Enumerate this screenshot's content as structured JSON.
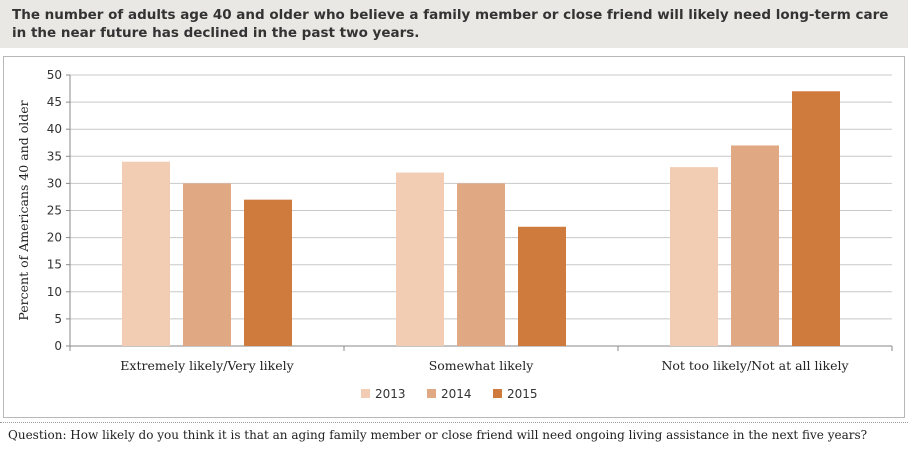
{
  "header": {
    "text": "The number of adults age 40 and older who believe a family member or close friend will likely need long-term care in the near future has declined in the past two years."
  },
  "footer": {
    "text": "Question: How likely do you think it is that an aging family member or close friend will need ongoing living assistance in the next five years?"
  },
  "chart_data": {
    "type": "bar",
    "categories": [
      "Extremely likely/Very likely",
      "Somewhat likely",
      "Not too likely/Not at all likely"
    ],
    "series": [
      {
        "name": "2013",
        "color": "#f2cdb3",
        "values": [
          34,
          32,
          33
        ]
      },
      {
        "name": "2014",
        "color": "#e0a983",
        "values": [
          30,
          30,
          37
        ]
      },
      {
        "name": "2015",
        "color": "#d07b3e",
        "values": [
          27,
          22,
          47
        ]
      }
    ],
    "ylabel": "Percent of Americans 40 and older",
    "ylim": [
      0,
      50
    ],
    "yticks": [
      0,
      5,
      10,
      15,
      20,
      25,
      30,
      35,
      40,
      45,
      50
    ],
    "grid": true,
    "legend": "bottom"
  }
}
